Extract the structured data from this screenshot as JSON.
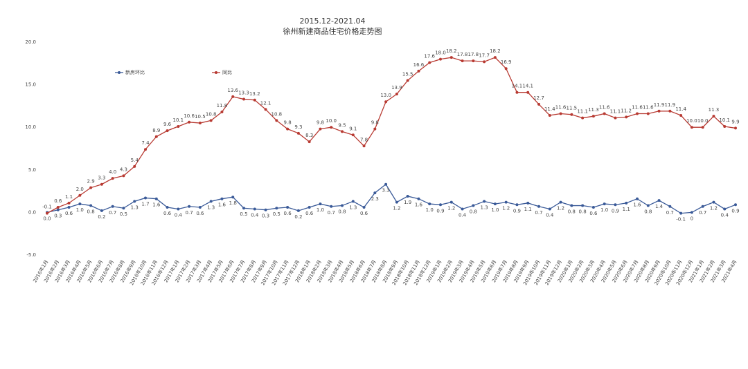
{
  "chart_data": {
    "type": "line",
    "title": "2015.12-2021.04",
    "subtitle": "徐州新建商品住宅价格走势图",
    "categories": [
      "2016年1月",
      "2016年2月",
      "2016年3月",
      "2016年4月",
      "2016年5月",
      "2016年6月",
      "2016年7月",
      "2016年8月",
      "2016年9月",
      "2016年10月",
      "2016年11月",
      "2016年12月",
      "2017年1月",
      "2017年2月",
      "2017年3月",
      "2017年4月",
      "2017年5月",
      "2017年6月",
      "2017年7月",
      "2017年8月",
      "2017年9月",
      "2017年10月",
      "2017年11月",
      "2017年12月",
      "2018年1月",
      "2018年2月",
      "2018年3月",
      "2018年4月",
      "2018年5月",
      "2018年6月",
      "2018年7月",
      "2018年8月",
      "2018年9月",
      "2018年10月",
      "2018年11月",
      "2018年12月",
      "2019年1月",
      "2019年2月",
      "2019年3月",
      "2019年4月",
      "2019年5月",
      "2019年6月",
      "2019年7月",
      "2019年8月",
      "2019年9月",
      "2019年10月",
      "2019年11月",
      "2019年12月",
      "2020年1月",
      "2020年2月",
      "2020年3月",
      "2020年4月",
      "2020年5月",
      "2020年6月",
      "2020年7月",
      "2020年8月",
      "2020年9月",
      "2020年10月",
      "2020年11月",
      "2020年12月",
      "2021年1月",
      "2021年2月",
      "2021年3月",
      "2021年4月"
    ],
    "series": [
      {
        "name": "新房环比",
        "color": "#3a5a98",
        "values": [
          0.0,
          0.3,
          0.6,
          1.0,
          0.8,
          0.2,
          0.7,
          0.5,
          1.3,
          1.7,
          1.6,
          0.6,
          0.4,
          0.7,
          0.6,
          1.3,
          1.6,
          1.8,
          0.5,
          0.4,
          0.3,
          0.5,
          0.6,
          0.2,
          0.6,
          1.0,
          0.7,
          0.8,
          1.3,
          0.6,
          2.3,
          3.3,
          1.2,
          1.9,
          1.6,
          1.0,
          0.9,
          1.2,
          0.4,
          0.8,
          1.3,
          1.0,
          1.2,
          0.9,
          1.1,
          0.7,
          0.4,
          1.2,
          0.8,
          0.8,
          0.6,
          1.0,
          0.9,
          1.1,
          1.6,
          0.8,
          1.4,
          0.7,
          -0.1,
          0.0,
          0.7,
          1.2,
          0.4,
          0.9
        ],
        "value_labels": [
          "0.0",
          "0.3",
          "0.6",
          "1.0",
          "0.8",
          "0.2",
          "0.7",
          "0.5",
          "1.3",
          "1.7",
          "1.6",
          "0.6",
          "0.4",
          "0.7",
          "0.6",
          "1.3",
          "1.6",
          "1.8",
          "0.5",
          "0.4",
          "0.3",
          "0.5",
          "0.6",
          "0.2",
          "0.6",
          "1.0",
          "0.7",
          "0.8",
          "1.3",
          "0.6",
          "2.3",
          "3.3",
          "1.2",
          "1.9",
          "1.6",
          "1.0",
          "0.9",
          "1.2",
          "0.4",
          "0.8",
          "1.3",
          "1.0",
          "1.2",
          "0.9",
          "1.1",
          "0.7",
          "0.4",
          "1.2",
          "0.8",
          "0.8",
          "0.6",
          "1.0",
          "0.9",
          "1.1",
          "1.6",
          "0.8",
          "1.4",
          "0.7",
          "-0.1",
          "0",
          "0.7",
          "1.2",
          "0.4",
          "0.9"
        ]
      },
      {
        "name": "同比",
        "color": "#b83a32",
        "values": [
          -0.1,
          0.6,
          1.1,
          2.0,
          2.9,
          3.3,
          4.0,
          4.3,
          5.4,
          7.4,
          8.9,
          9.6,
          10.1,
          10.6,
          10.5,
          10.8,
          11.8,
          13.6,
          13.3,
          13.2,
          12.1,
          10.8,
          9.8,
          9.3,
          8.3,
          9.8,
          10.0,
          9.5,
          9.1,
          7.8,
          9.8,
          13.0,
          13.9,
          15.5,
          16.6,
          17.6,
          18.0,
          18.2,
          17.8,
          17.8,
          17.7,
          18.2,
          16.9,
          14.1,
          14.1,
          12.7,
          11.4,
          11.6,
          11.5,
          11.1,
          11.3,
          11.6,
          11.1,
          11.2,
          11.6,
          11.6,
          11.9,
          11.9,
          11.4,
          10.0,
          10.0,
          11.3,
          10.1,
          9.9
        ],
        "value_labels": [
          "-0.1",
          "0.6",
          "1.1",
          "2.0",
          "2.9",
          "3.3",
          "4.0",
          "4.3",
          "5.4",
          "7.4",
          "8.9",
          "9.6",
          "10.1",
          "10.6",
          "10.5",
          "10.8",
          "11.8",
          "13.6",
          "13.3",
          "13.2",
          "12.1",
          "10.8",
          "9.8",
          "9.3",
          "8.3",
          "9.8",
          "10.0",
          "9.5",
          "9.1",
          "7.8",
          "9.8",
          "13.0",
          "13.9",
          "15.5",
          "16.6",
          "17.6",
          "18.0",
          "18.2",
          "17.8",
          "17.8",
          "17.7",
          "18.2",
          "16.9",
          "14.1",
          "14.1",
          "12.7",
          "11.4",
          "11.6",
          "11.5",
          "11.1",
          "11.3",
          "11.6",
          "11.1",
          "11.2",
          "11.6",
          "11.6",
          "11.9",
          "11.9",
          "11.4",
          "10.0",
          "10.0",
          "11.3",
          "10.1",
          "9.9"
        ]
      }
    ],
    "ylim": [
      -5,
      20
    ],
    "yticks": [
      {
        "value": -5,
        "label": "-5.0"
      },
      {
        "value": 0,
        "label": "0.0"
      },
      {
        "value": 5,
        "label": "5.0"
      },
      {
        "value": 10,
        "label": "10.0"
      },
      {
        "value": 15,
        "label": "15.0"
      },
      {
        "value": 20,
        "label": "20.0"
      }
    ],
    "grid": false,
    "legend": "top-left"
  }
}
